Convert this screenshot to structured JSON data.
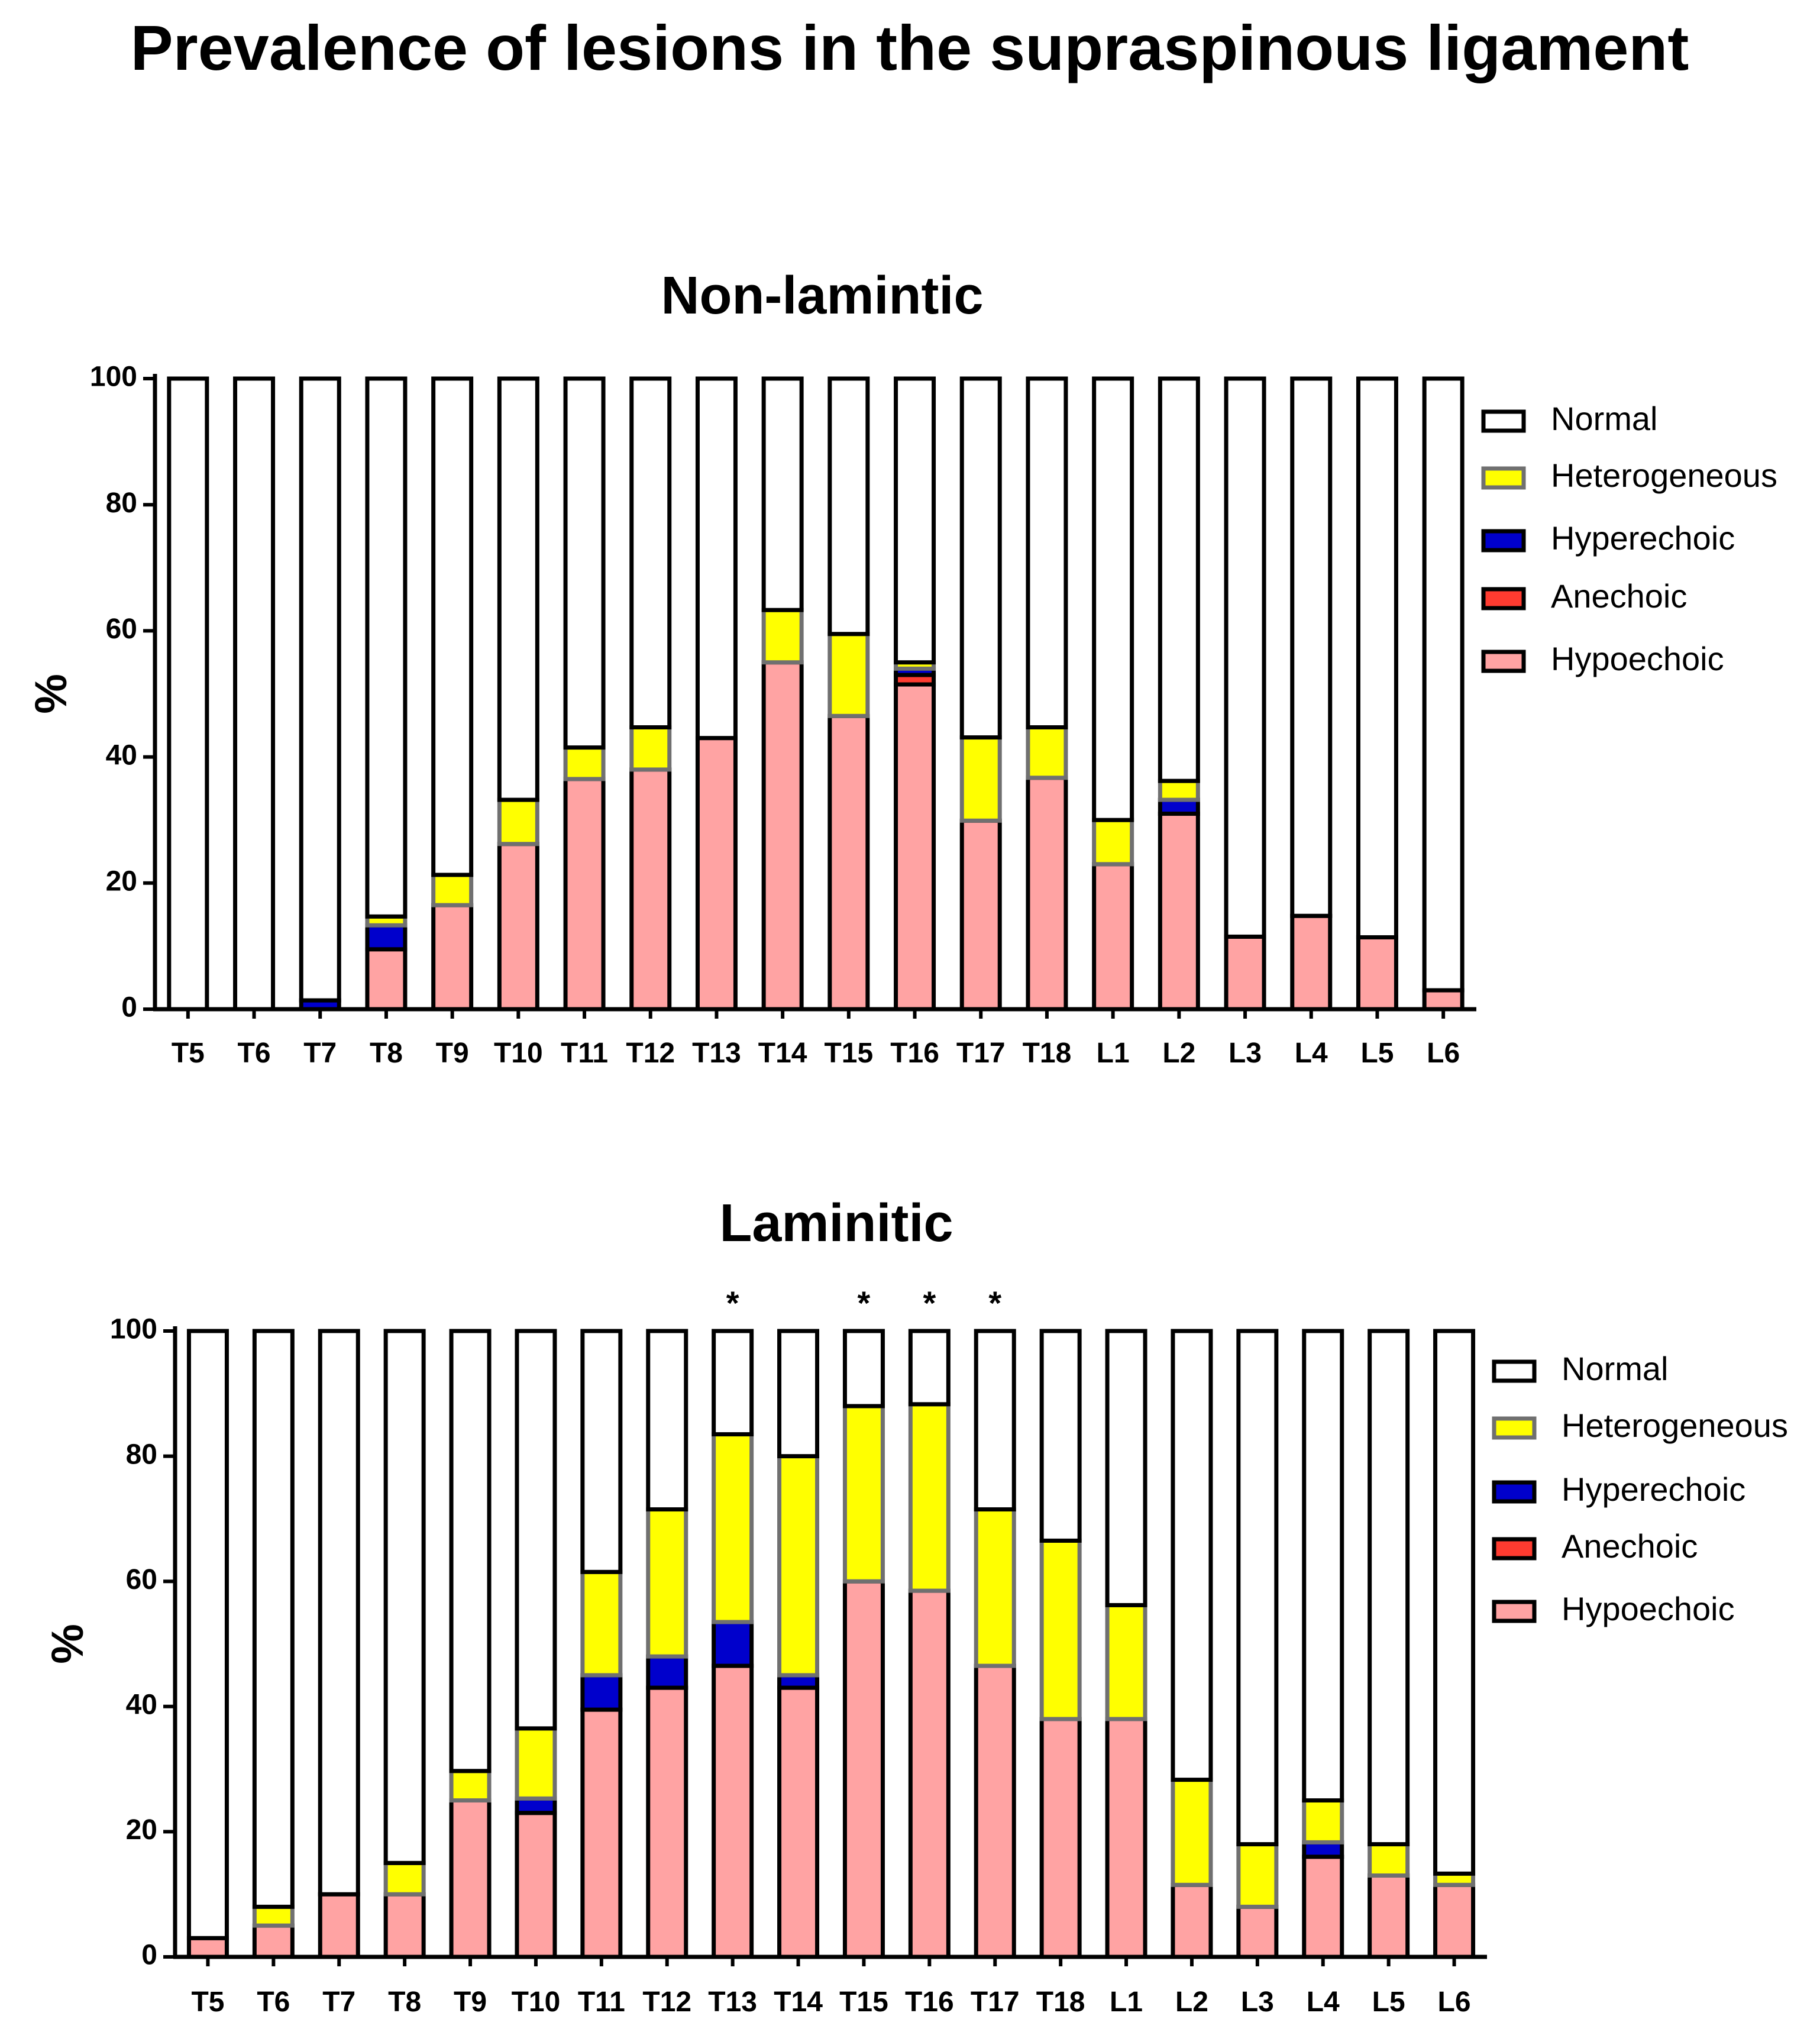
{
  "title": "Prevalence of lesions in the supraspinous ligament",
  "colors": {
    "normal": "#ffffff",
    "heterogeneous": "#ffff00",
    "hyperechoic": "#0000cc",
    "anechoic": "#ff3b30",
    "hypoechoic": "#ffa3a3",
    "outline": "#000000",
    "heterogeneous_outline": "#707070"
  },
  "chart_data": [
    {
      "type": "bar",
      "stacked": true,
      "title": "Non-lamintic",
      "xlabel": "",
      "ylabel": "%",
      "ylim": [
        0,
        100
      ],
      "yticks": [
        0,
        20,
        40,
        60,
        80,
        100
      ],
      "legend_position": "right",
      "categories": [
        "T5",
        "T6",
        "T7",
        "T8",
        "T9",
        "T10",
        "T11",
        "T12",
        "T13",
        "T14",
        "T15",
        "T16",
        "T17",
        "T18",
        "L1",
        "L2",
        "L3",
        "L4",
        "L5",
        "L6"
      ],
      "series": [
        {
          "name": "Hypoechoic",
          "key": "hypoechoic",
          "values": [
            0,
            0,
            0,
            9.5,
            16.5,
            26.2,
            36.5,
            38,
            43,
            55,
            46.5,
            51.5,
            29.9,
            36.7,
            23,
            31,
            11.5,
            14.8,
            11.4,
            3
          ]
        },
        {
          "name": "Anechoic",
          "key": "anechoic",
          "values": [
            0,
            0,
            0,
            0,
            0,
            0,
            0,
            0,
            0,
            0,
            0,
            1.5,
            0,
            0,
            0,
            0,
            0,
            0,
            0,
            0
          ]
        },
        {
          "name": "Hyperechoic",
          "key": "hyperechoic",
          "values": [
            0,
            0,
            1.4,
            3.8,
            0,
            0,
            0,
            0,
            0,
            0,
            0,
            1,
            0,
            0,
            0,
            2.2,
            0,
            0,
            0,
            0
          ]
        },
        {
          "name": "Heterogeneous",
          "key": "heterogeneous",
          "values": [
            0,
            0,
            0,
            1.4,
            4.8,
            7,
            5,
            6.7,
            0,
            8.3,
            13,
            1,
            13.2,
            8,
            7,
            3,
            0,
            0,
            0,
            0
          ]
        },
        {
          "name": "Normal",
          "key": "normal",
          "values": [
            100,
            100,
            98.6,
            85.3,
            78.7,
            66.8,
            58.5,
            55.3,
            57,
            36.7,
            40.5,
            45,
            56.9,
            55.3,
            70,
            63.8,
            88.5,
            85.2,
            88.6,
            97
          ]
        }
      ],
      "legend": [
        "Normal",
        "Heterogeneous",
        "Hyperechoic",
        "Anechoic",
        "Hypoechoic"
      ],
      "annotations": []
    },
    {
      "type": "bar",
      "stacked": true,
      "title": "Laminitic",
      "xlabel": "",
      "ylabel": "%",
      "ylim": [
        0,
        100
      ],
      "yticks": [
        0,
        20,
        40,
        60,
        80,
        100
      ],
      "legend_position": "right",
      "categories": [
        "T5",
        "T6",
        "T7",
        "T8",
        "T9",
        "T10",
        "T11",
        "T12",
        "T13",
        "T14",
        "T15",
        "T16",
        "T17",
        "T18",
        "L1",
        "L2",
        "L3",
        "L4",
        "L5",
        "L6"
      ],
      "series": [
        {
          "name": "Hypoechoic",
          "key": "hypoechoic",
          "values": [
            3,
            5,
            10,
            10,
            25,
            23,
            39.5,
            43,
            46.5,
            43,
            60,
            58.5,
            46.5,
            38,
            38,
            11.5,
            8,
            16,
            13,
            11.5
          ]
        },
        {
          "name": "Anechoic",
          "key": "anechoic",
          "values": [
            0,
            0,
            0,
            0,
            0,
            0,
            0,
            0,
            0,
            0,
            0,
            0,
            0,
            0,
            0,
            0,
            0,
            0,
            0,
            0
          ]
        },
        {
          "name": "Hyperechoic",
          "key": "hyperechoic",
          "values": [
            0,
            0,
            0,
            0,
            0,
            2.3,
            5.5,
            5,
            7,
            2,
            0,
            0,
            0,
            0,
            0,
            0,
            0,
            2.3,
            0,
            0
          ]
        },
        {
          "name": "Heterogeneous",
          "key": "heterogeneous",
          "values": [
            0,
            3,
            0,
            5,
            4.7,
            11.2,
            16.5,
            23.5,
            30,
            35,
            28,
            29.8,
            25,
            28.5,
            18.2,
            16.8,
            10,
            6.7,
            5,
            1.8
          ]
        },
        {
          "name": "Normal",
          "key": "normal",
          "values": [
            97,
            92,
            90,
            85,
            70.3,
            63.5,
            38.5,
            28.5,
            16.5,
            20,
            12,
            11.7,
            28.5,
            33.5,
            43.8,
            71.7,
            82,
            75,
            82,
            86.7
          ]
        }
      ],
      "legend": [
        "Normal",
        "Heterogeneous",
        "Hyperechoic",
        "Anechoic",
        "Hypoechoic"
      ],
      "annotations": [
        {
          "category": "T13",
          "text": "*"
        },
        {
          "category": "T15",
          "text": "*"
        },
        {
          "category": "T16",
          "text": "*"
        },
        {
          "category": "T17",
          "text": "*"
        }
      ]
    }
  ]
}
